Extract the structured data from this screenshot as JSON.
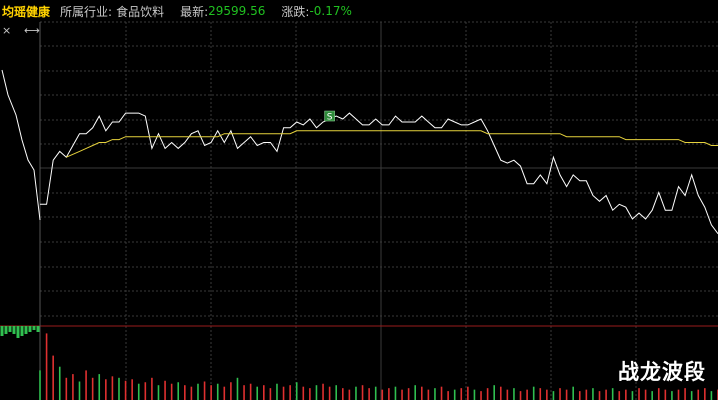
{
  "header": {
    "stock_name": "均瑶健康",
    "industry_label": "所属行业:",
    "industry_value": "食品饮料",
    "latest_label": "最新:",
    "latest_value": "29599.56",
    "change_label": "涨跌:",
    "change_value": "-0.17%"
  },
  "controls": {
    "close_icon": "×",
    "resize_icon": "⟷"
  },
  "signal_marker": {
    "label": "S",
    "color": "#2e8b3a"
  },
  "watermark": "战龙波段",
  "colors": {
    "price_line": "#ffffff",
    "avg_line": "#e6d23c",
    "grid": "#3a3a3a",
    "separator": "#9a1c1c",
    "vol_up": "#e03030",
    "vol_down": "#30c050"
  },
  "chart_data": {
    "type": "line",
    "series": [
      {
        "values": [
          78,
          78,
          93,
          96,
          94,
          98,
          102,
          102,
          104,
          108,
          103,
          106,
          106,
          109,
          109,
          109,
          108,
          97,
          102,
          97,
          99,
          97,
          99,
          102,
          103,
          98,
          99,
          103,
          99,
          103,
          97,
          99,
          101,
          98,
          99,
          99,
          96,
          104,
          104,
          106,
          105,
          107,
          104,
          106,
          107,
          108,
          107,
          109,
          107,
          105,
          105,
          107,
          105,
          105,
          108,
          106,
          106,
          106,
          108,
          106,
          104,
          104,
          107,
          106,
          105,
          105,
          106,
          107,
          103,
          98,
          93,
          92,
          93,
          91,
          85,
          85,
          88,
          85,
          94,
          88,
          84,
          88,
          86,
          86,
          81,
          79,
          81,
          76,
          78,
          77,
          73,
          75,
          73,
          76,
          82,
          76,
          76,
          84,
          81,
          88,
          81,
          77,
          71,
          68
        ]
      },
      {
        "values": [
          null,
          null,
          null,
          null,
          94,
          95,
          96,
          97,
          98,
          99,
          99,
          100,
          100,
          101,
          101,
          101,
          101,
          101,
          101,
          101,
          101,
          101,
          101,
          101,
          101,
          101,
          101,
          101,
          102,
          102,
          102,
          102,
          102,
          102,
          102,
          102,
          102,
          102,
          102,
          103,
          103,
          103,
          103,
          103,
          103,
          103,
          103,
          103,
          103,
          103,
          103,
          103,
          103,
          103,
          103,
          103,
          103,
          103,
          103,
          103,
          103,
          103,
          103,
          103,
          103,
          103,
          103,
          103,
          102,
          102,
          102,
          102,
          102,
          102,
          102,
          102,
          102,
          102,
          102,
          102,
          101,
          101,
          101,
          101,
          101,
          101,
          101,
          101,
          101,
          100,
          100,
          100,
          100,
          100,
          100,
          100,
          100,
          100,
          99,
          99,
          99,
          99,
          98,
          98
        ]
      }
    ],
    "volume": [
      40,
      90,
      60,
      45,
      30,
      35,
      25,
      40,
      30,
      35,
      28,
      32,
      30,
      26,
      28,
      22,
      24,
      30,
      20,
      26,
      22,
      24,
      20,
      18,
      22,
      25,
      20,
      22,
      18,
      24,
      30,
      20,
      22,
      18,
      20,
      16,
      22,
      18,
      20,
      24,
      18,
      16,
      20,
      22,
      18,
      20,
      16,
      14,
      18,
      20,
      16,
      18,
      14,
      16,
      18,
      14,
      16,
      20,
      18,
      14,
      16,
      18,
      12,
      14,
      16,
      18,
      14,
      12,
      16,
      20,
      18,
      14,
      16,
      12,
      14,
      18,
      16,
      14,
      12,
      16,
      14,
      18,
      12,
      14,
      16,
      12,
      14,
      16,
      12,
      14,
      12,
      16,
      14,
      12,
      16,
      14,
      12,
      14,
      16,
      12,
      14,
      16,
      12,
      14
    ]
  }
}
